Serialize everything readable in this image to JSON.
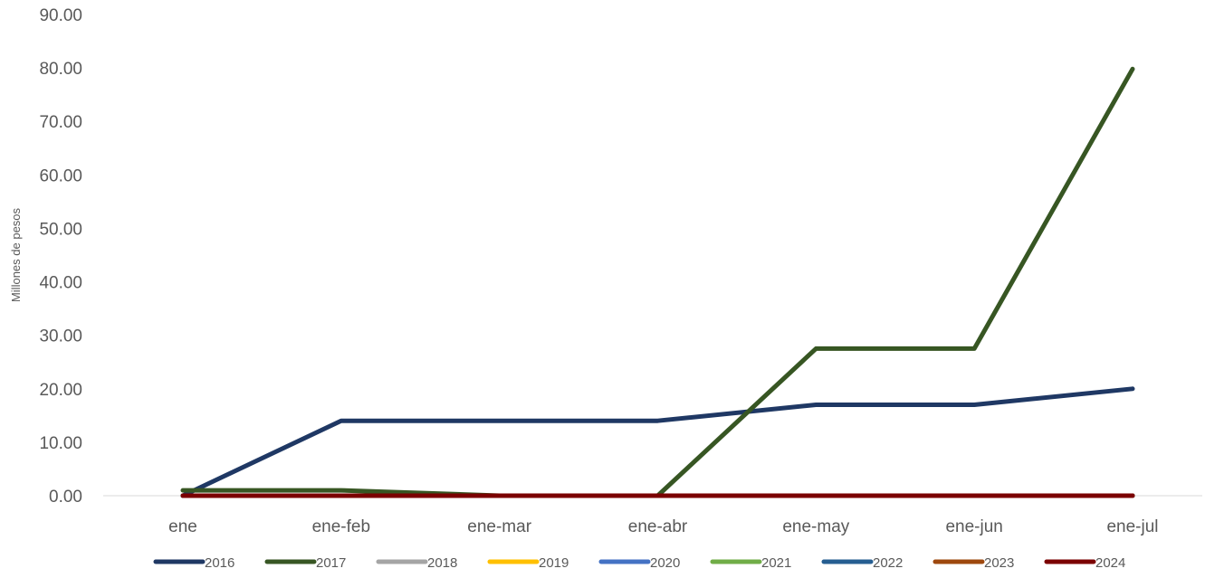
{
  "chart_data": {
    "type": "line",
    "ylabel": "Millones de pesos",
    "ylim": [
      0,
      90
    ],
    "yticks": [
      "0.00",
      "10.00",
      "20.00",
      "30.00",
      "40.00",
      "50.00",
      "60.00",
      "70.00",
      "80.00",
      "90.00"
    ],
    "categories": [
      "ene",
      "ene-feb",
      "ene-mar",
      "ene-abr",
      "ene-may",
      "ene-jun",
      "ene-jul"
    ],
    "grid": false,
    "legend_position": "bottom",
    "series": [
      {
        "name": "2016",
        "color": "#1f3864",
        "values": [
          0,
          14,
          14,
          14,
          17,
          17,
          20
        ]
      },
      {
        "name": "2017",
        "color": "#375623",
        "values": [
          1,
          1,
          0,
          0,
          27.5,
          27.5,
          79.8
        ]
      },
      {
        "name": "2018",
        "color": "#a5a5a5",
        "values": [
          0,
          0,
          0,
          0,
          0,
          0,
          0
        ]
      },
      {
        "name": "2019",
        "color": "#ffc000",
        "values": [
          0,
          0,
          0,
          0,
          0,
          0,
          0
        ]
      },
      {
        "name": "2020",
        "color": "#4472c4",
        "values": [
          0,
          0,
          0,
          0,
          0,
          0,
          0
        ]
      },
      {
        "name": "2021",
        "color": "#70ad47",
        "values": [
          0,
          0,
          0,
          0,
          0,
          0,
          0
        ]
      },
      {
        "name": "2022",
        "color": "#255e91",
        "values": [
          0,
          0,
          0,
          0,
          0,
          0,
          0
        ]
      },
      {
        "name": "2023",
        "color": "#9e480e",
        "values": [
          0,
          0,
          0,
          0,
          0,
          0,
          0
        ]
      },
      {
        "name": "2024",
        "color": "#7b0000",
        "values": [
          0,
          0,
          0,
          0,
          0,
          0,
          0
        ]
      }
    ]
  }
}
